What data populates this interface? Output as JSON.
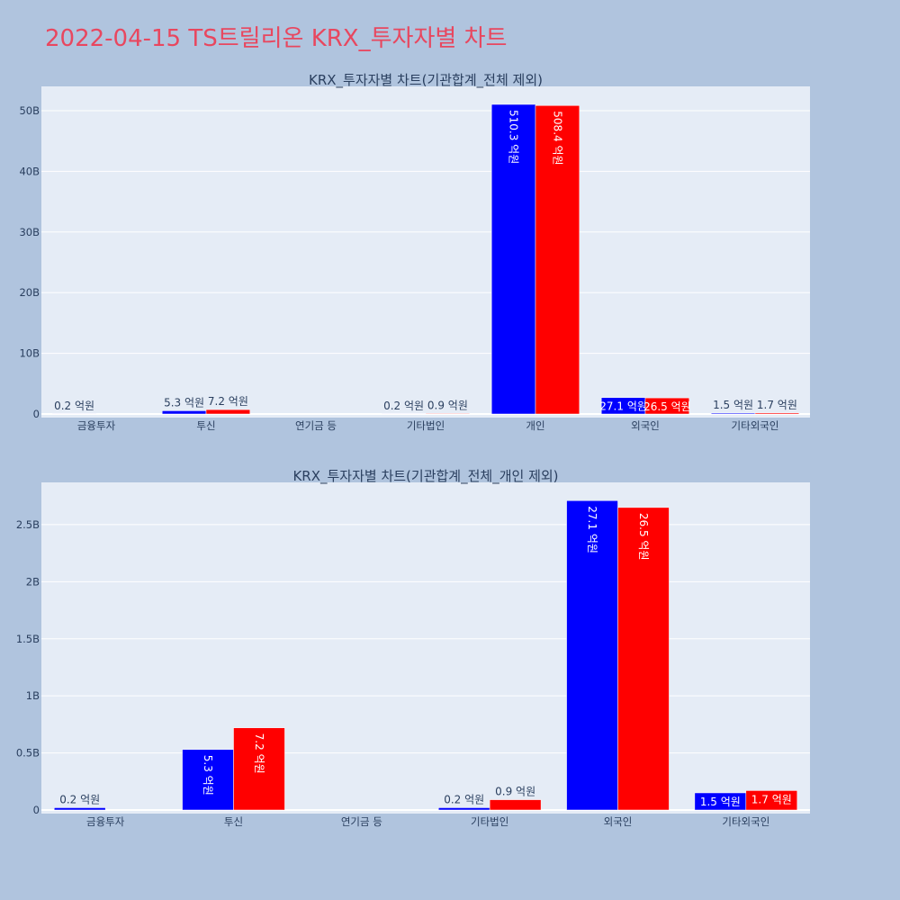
{
  "page": {
    "title": "2022-04-15 TS트릴리온 KRX_투자자별 차트",
    "background": "#b0c4de",
    "plot_bg": "#e5ecf6",
    "title_color": "#e8475f"
  },
  "chart_data": [
    {
      "type": "bar",
      "title": "KRX_투자자별 차트(기관합계_전체 제외)",
      "categories": [
        "금융투자",
        "투신",
        "연기금 등",
        "기타법인",
        "개인",
        "외국인",
        "기타외국인"
      ],
      "series": [
        {
          "color": "#0000ff",
          "values": [
            20000000,
            530000000,
            null,
            20000000,
            51030000000,
            2710000000,
            150000000
          ],
          "labels": [
            "0.2 억원",
            "5.3 억원",
            "",
            "0.2 억원",
            "510.3 억원",
            "27.1 억원",
            "1.5 억원"
          ]
        },
        {
          "color": "#ff0000",
          "values": [
            null,
            720000000,
            null,
            90000000,
            50840000000,
            2650000000,
            170000000
          ],
          "labels": [
            "",
            "7.2 억원",
            "",
            "0.9 억원",
            "508.4 억원",
            "26.5 억원",
            "1.7 억원"
          ]
        }
      ],
      "ylim": [
        0,
        54000000000
      ],
      "yticks": [
        {
          "v": 0,
          "t": "0"
        },
        {
          "v": 10000000000,
          "t": "10B"
        },
        {
          "v": 20000000000,
          "t": "20B"
        },
        {
          "v": 30000000000,
          "t": "30B"
        },
        {
          "v": 40000000000,
          "t": "40B"
        },
        {
          "v": 50000000000,
          "t": "50B"
        }
      ],
      "grid": true
    },
    {
      "type": "bar",
      "title": "KRX_투자자별 차트(기관합계_전체_개인 제외)",
      "categories": [
        "금융투자",
        "투신",
        "연기금 등",
        "기타법인",
        "외국인",
        "기타외국인"
      ],
      "series": [
        {
          "color": "#0000ff",
          "values": [
            20000000,
            530000000,
            null,
            20000000,
            2710000000,
            150000000
          ],
          "labels": [
            "0.2 억원",
            "5.3 억원",
            "",
            "0.2 억원",
            "27.1 억원",
            "1.5 억원"
          ]
        },
        {
          "color": "#ff0000",
          "values": [
            null,
            720000000,
            null,
            90000000,
            2650000000,
            170000000
          ],
          "labels": [
            "",
            "7.2 억원",
            "",
            "0.9 억원",
            "26.5 억원",
            "1.7 억원"
          ]
        }
      ],
      "ylim": [
        0,
        2870000000
      ],
      "yticks": [
        {
          "v": 0,
          "t": "0"
        },
        {
          "v": 500000000,
          "t": "0.5B"
        },
        {
          "v": 1000000000,
          "t": "1B"
        },
        {
          "v": 1500000000,
          "t": "1.5B"
        },
        {
          "v": 2000000000,
          "t": "2B"
        },
        {
          "v": 2500000000,
          "t": "2.5B"
        }
      ],
      "grid": true
    }
  ]
}
